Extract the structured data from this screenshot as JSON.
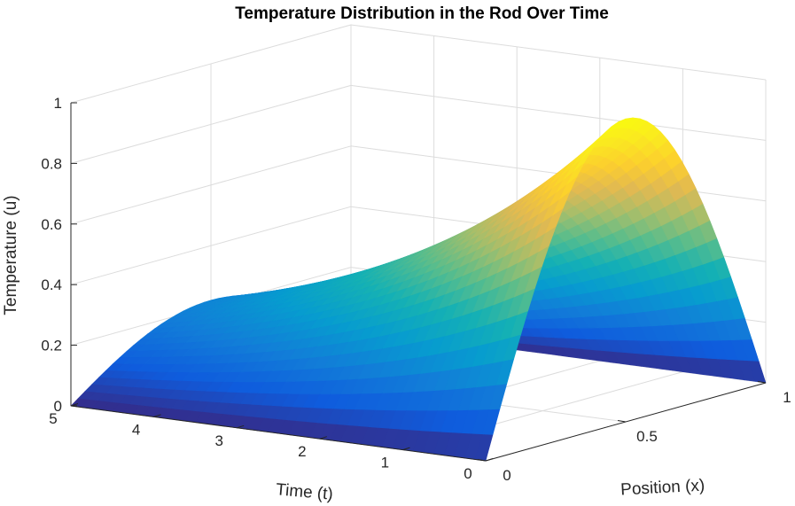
{
  "chart_data": {
    "type": "surface",
    "title": "Temperature Distribution in the Rod Over Time",
    "xlabel": "Position (x)",
    "ylabel": "Time (t)",
    "zlabel": "Temperature (u)",
    "xlim": [
      0,
      1
    ],
    "ylim": [
      0,
      5
    ],
    "zlim": [
      0,
      1
    ],
    "x_ticks": [
      "0",
      "0.5",
      "1"
    ],
    "y_ticks": [
      "0",
      "1",
      "2",
      "3",
      "4",
      "5"
    ],
    "z_ticks": [
      "0",
      "0.2",
      "0.4",
      "0.6",
      "0.8",
      "1"
    ],
    "grid": true,
    "colormap": "parula",
    "surface": {
      "function": "u(x,t) = sin(pi*x) * exp(-d*t)",
      "x": [
        0,
        0.1,
        0.2,
        0.3,
        0.4,
        0.5,
        0.6,
        0.7,
        0.8,
        0.9,
        1.0
      ],
      "t": [
        0,
        1,
        2,
        3,
        4,
        5
      ],
      "u_at_x_0_5": [
        1.0,
        0.74,
        0.55,
        0.4,
        0.3,
        0.22
      ]
    }
  }
}
